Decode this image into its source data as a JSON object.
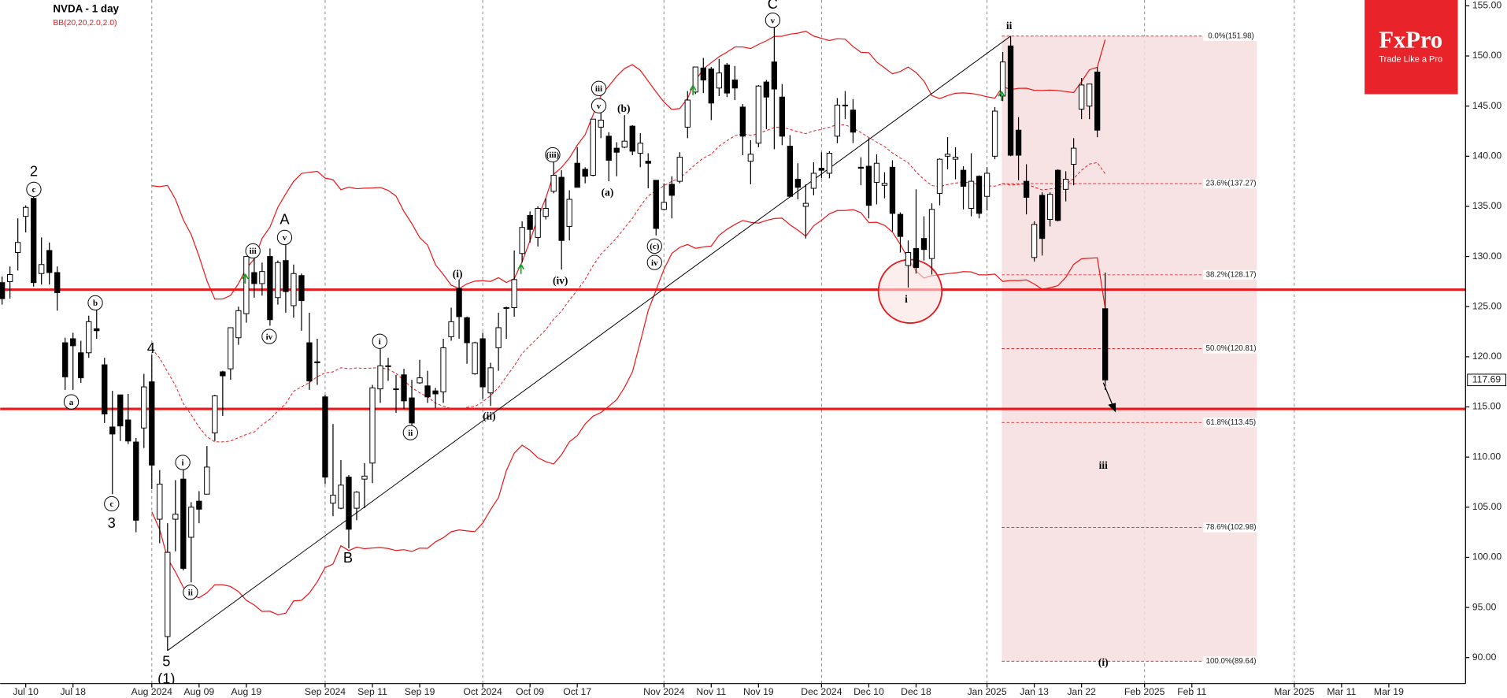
{
  "chart_data": {
    "type": "candlestick",
    "title": "NVDA - 1 day",
    "indicator": {
      "label": "BB(20,20,2.0,2.0)",
      "period": 20,
      "deviations": 2,
      "color": "#e8191c"
    },
    "categories": [
      null,
      null,
      null,
      "Jul 10",
      null,
      null,
      null,
      null,
      null,
      "Jul 18",
      null,
      null,
      null,
      null,
      null,
      null,
      null,
      null,
      null,
      "Aug 2024",
      null,
      null,
      null,
      null,
      null,
      "Aug 09",
      null,
      null,
      null,
      null,
      null,
      "Aug 19",
      null,
      null,
      null,
      null,
      null,
      null,
      null,
      null,
      null,
      "Sep 2024",
      null,
      null,
      null,
      null,
      null,
      "Sep 11",
      null,
      null,
      null,
      null,
      null,
      "Sep 19",
      null,
      null,
      null,
      null,
      null,
      null,
      null,
      "Oct 2024",
      null,
      null,
      null,
      null,
      null,
      "Oct 09",
      null,
      null,
      null,
      null,
      null,
      "Oct 17",
      null,
      null,
      null,
      null,
      null,
      null,
      null,
      null,
      null,
      null,
      "Nov 2024",
      null,
      null,
      null,
      null,
      null,
      "Nov 11",
      null,
      null,
      null,
      null,
      null,
      "Nov 19",
      null,
      null,
      null,
      null,
      null,
      null,
      null,
      "Dec 2024",
      null,
      null,
      null,
      null,
      null,
      "Dec 10",
      null,
      null,
      null,
      null,
      null,
      "Dec 18",
      null,
      null,
      null,
      null,
      null,
      null,
      null,
      null,
      "Jan 2025",
      null,
      null,
      null,
      null,
      null,
      "Jan 13",
      null,
      null,
      null,
      null,
      null,
      "Jan 22",
      null,
      null,
      null,
      null,
      null,
      null,
      null,
      "Feb 2025",
      null,
      null,
      null,
      null,
      null,
      "Feb 11",
      null,
      null,
      null,
      null,
      null,
      null,
      null,
      null,
      null,
      null,
      null,
      null,
      "Mar 2025",
      null,
      null,
      null,
      null,
      null,
      "Mar 11",
      null,
      null,
      null,
      null,
      null,
      "Mar 19",
      null,
      null,
      null,
      null,
      null,
      null,
      null,
      null,
      null
    ],
    "candles": [
      [
        127.4,
        128.0,
        125.2,
        125.8
      ],
      [
        127.5,
        129.0,
        125.8,
        128.2
      ],
      [
        130.4,
        133.8,
        128.6,
        131.4
      ],
      [
        134.0,
        135.1,
        132.4,
        134.9
      ],
      [
        135.8,
        136.2,
        127.0,
        127.4
      ],
      [
        128.3,
        131.9,
        127.2,
        129.2
      ],
      [
        130.6,
        131.4,
        127.2,
        128.4
      ],
      [
        128.4,
        129.0,
        124.6,
        126.4
      ],
      [
        121.4,
        121.9,
        116.7,
        118.0
      ],
      [
        121.8,
        122.4,
        116.7,
        121.1
      ],
      [
        120.4,
        121.6,
        117.4,
        117.9
      ],
      [
        120.4,
        124.1,
        119.9,
        123.5
      ],
      [
        122.8,
        124.7,
        121.8,
        122.6
      ],
      [
        119.2,
        119.9,
        113.4,
        114.3
      ],
      [
        113.0,
        116.6,
        106.3,
        112.3
      ],
      [
        116.2,
        116.2,
        111.6,
        113.1
      ],
      [
        113.7,
        116.3,
        111.3,
        111.6
      ],
      [
        111.5,
        111.9,
        102.5,
        103.7
      ],
      [
        112.9,
        118.3,
        110.9,
        117.0
      ],
      [
        117.5,
        120.2,
        106.8,
        109.2
      ],
      [
        103.8,
        108.7,
        101.4,
        107.3
      ],
      [
        92.1,
        103.4,
        90.7,
        100.5
      ],
      [
        103.8,
        107.7,
        100.6,
        104.3
      ],
      [
        107.8,
        108.8,
        98.7,
        98.9
      ],
      [
        102.0,
        105.5,
        97.5,
        105.0
      ],
      [
        105.6,
        106.6,
        103.4,
        104.8
      ],
      [
        106.3,
        111.1,
        106.3,
        109.0
      ],
      [
        112.4,
        116.2,
        111.6,
        116.1
      ],
      [
        118.5,
        118.6,
        114.1,
        118.1
      ],
      [
        118.8,
        122.9,
        117.7,
        122.9
      ],
      [
        121.9,
        125.0,
        121.2,
        124.6
      ],
      [
        124.3,
        130.0,
        123.4,
        130.0
      ],
      [
        128.4,
        129.9,
        125.9,
        127.3
      ],
      [
        127.3,
        129.4,
        126.1,
        128.5
      ],
      [
        130.0,
        130.8,
        123.1,
        123.7
      ],
      [
        125.9,
        129.6,
        125.2,
        129.4
      ],
      [
        129.6,
        131.3,
        124.4,
        126.5
      ],
      [
        125.1,
        129.2,
        123.9,
        128.3
      ],
      [
        128.1,
        128.3,
        122.6,
        125.6
      ],
      [
        121.4,
        124.4,
        116.7,
        117.6
      ],
      [
        119.5,
        121.8,
        117.2,
        119.4
      ],
      [
        116.0,
        116.2,
        107.3,
        108.0
      ],
      [
        105.4,
        113.3,
        104.1,
        106.2
      ],
      [
        104.9,
        109.7,
        104.8,
        107.2
      ],
      [
        108.0,
        108.2,
        100.9,
        102.8
      ],
      [
        104.9,
        106.6,
        103.7,
        106.5
      ],
      [
        107.8,
        109.4,
        104.9,
        108.1
      ],
      [
        109.4,
        117.2,
        107.4,
        116.9
      ],
      [
        116.8,
        120.8,
        115.4,
        119.1
      ],
      [
        119.1,
        119.9,
        117.6,
        119.1
      ],
      [
        116.8,
        118.2,
        114.4,
        116.8
      ],
      [
        118.2,
        118.8,
        114.8,
        115.6
      ],
      [
        115.9,
        117.7,
        113.2,
        113.4
      ],
      [
        117.4,
        119.7,
        117.3,
        117.9
      ],
      [
        117.1,
        118.6,
        115.4,
        116.0
      ],
      [
        116.6,
        116.9,
        114.9,
        116.3
      ],
      [
        116.5,
        121.8,
        115.4,
        120.9
      ],
      [
        122.0,
        124.9,
        121.6,
        123.5
      ],
      [
        126.8,
        127.7,
        121.8,
        124.0
      ],
      [
        123.9,
        124.0,
        119.3,
        121.4
      ],
      [
        118.3,
        121.5,
        118.2,
        121.4
      ],
      [
        121.8,
        122.4,
        115.8,
        117.0
      ],
      [
        116.4,
        119.4,
        115.1,
        118.9
      ],
      [
        120.9,
        124.4,
        118.6,
        122.9
      ],
      [
        124.9,
        125.0,
        121.8,
        124.9
      ],
      [
        124.9,
        130.6,
        124.0,
        127.7
      ],
      [
        130.3,
        133.5,
        129.4,
        132.9
      ],
      [
        134.1,
        134.5,
        131.4,
        132.7
      ],
      [
        131.9,
        135.0,
        131.0,
        134.8
      ],
      [
        134.0,
        135.8,
        133.7,
        134.8
      ],
      [
        136.5,
        139.6,
        136.3,
        138.1
      ],
      [
        137.9,
        138.6,
        128.7,
        131.6
      ],
      [
        133.0,
        136.6,
        131.6,
        135.7
      ],
      [
        139.3,
        140.9,
        136.9,
        136.9
      ],
      [
        138.7,
        138.9,
        137.3,
        138.0
      ],
      [
        138.1,
        143.7,
        138.0,
        143.7
      ],
      [
        142.9,
        144.4,
        141.8,
        143.6
      ],
      [
        142.0,
        142.4,
        137.5,
        139.6
      ],
      [
        140.8,
        141.4,
        138.0,
        140.4
      ],
      [
        140.9,
        144.1,
        140.8,
        141.5
      ],
      [
        143.0,
        143.1,
        140.1,
        140.5
      ],
      [
        140.3,
        142.3,
        138.9,
        141.3
      ],
      [
        139.5,
        140.3,
        136.8,
        139.3
      ],
      [
        137.6,
        137.6,
        132.1,
        132.8
      ],
      [
        134.7,
        137.3,
        134.6,
        135.4
      ],
      [
        137.2,
        138.0,
        133.8,
        136.1
      ],
      [
        137.5,
        140.4,
        137.3,
        139.9
      ],
      [
        142.9,
        146.5,
        141.8,
        145.6
      ],
      [
        146.4,
        148.9,
        146.2,
        148.9
      ],
      [
        148.8,
        149.8,
        146.3,
        147.6
      ],
      [
        148.7,
        148.9,
        143.6,
        145.3
      ],
      [
        146.8,
        149.7,
        146.0,
        148.3
      ],
      [
        149.1,
        149.3,
        145.9,
        146.3
      ],
      [
        147.6,
        149.0,
        145.6,
        146.8
      ],
      [
        144.9,
        145.2,
        140.1,
        142.0
      ],
      [
        139.5,
        141.6,
        137.2,
        140.2
      ],
      [
        141.3,
        147.1,
        140.9,
        147.0
      ],
      [
        147.4,
        147.6,
        142.7,
        145.9
      ],
      [
        149.4,
        152.9,
        140.7,
        146.7
      ],
      [
        145.9,
        147.2,
        141.1,
        142.0
      ],
      [
        141.0,
        142.1,
        135.9,
        136.0
      ],
      [
        137.7,
        139.3,
        135.7,
        136.9
      ],
      [
        135.0,
        137.2,
        131.8,
        135.3
      ],
      [
        136.8,
        139.4,
        136.1,
        138.3
      ],
      [
        138.8,
        140.4,
        137.8,
        138.6
      ],
      [
        138.3,
        140.5,
        137.8,
        140.3
      ],
      [
        142.0,
        145.8,
        141.3,
        145.1
      ],
      [
        145.1,
        146.5,
        143.7,
        145.1
      ],
      [
        144.6,
        145.7,
        141.3,
        142.4
      ],
      [
        138.9,
        139.9,
        137.1,
        138.8
      ],
      [
        139.0,
        141.8,
        133.8,
        135.1
      ],
      [
        137.4,
        140.2,
        135.2,
        139.3
      ],
      [
        137.1,
        138.4,
        135.8,
        137.3
      ],
      [
        138.9,
        139.6,
        132.5,
        134.3
      ],
      [
        134.2,
        134.4,
        130.4,
        132.0
      ],
      [
        129.1,
        131.6,
        126.9,
        130.4
      ],
      [
        130.8,
        136.7,
        128.3,
        128.9
      ],
      [
        131.8,
        134.0,
        129.6,
        130.7
      ],
      [
        129.8,
        135.3,
        128.2,
        134.7
      ],
      [
        136.3,
        139.8,
        135.1,
        139.7
      ],
      [
        140.0,
        141.9,
        138.7,
        140.2
      ],
      [
        139.7,
        140.9,
        137.7,
        139.9
      ],
      [
        138.6,
        139.0,
        134.7,
        137.0
      ],
      [
        134.8,
        140.3,
        134.0,
        137.5
      ],
      [
        138.0,
        138.1,
        133.8,
        134.3
      ],
      [
        136.0,
        138.9,
        134.6,
        138.3
      ],
      [
        140.0,
        144.9,
        139.7,
        144.5
      ],
      [
        146.0,
        150.4,
        145.5,
        149.4
      ],
      [
        151.0,
        151.98,
        140.0,
        140.1
      ],
      [
        142.6,
        143.9,
        137.6,
        140.1
      ],
      [
        137.5,
        139.2,
        134.2,
        135.9
      ],
      [
        129.9,
        133.5,
        129.5,
        133.2
      ],
      [
        136.1,
        136.4,
        130.1,
        131.8
      ],
      [
        133.7,
        136.4,
        133.0,
        136.2
      ],
      [
        138.6,
        138.7,
        133.5,
        133.6
      ],
      [
        136.7,
        138.5,
        135.5,
        137.7
      ],
      [
        139.2,
        141.8,
        137.1,
        140.8
      ],
      [
        144.7,
        147.8,
        143.7,
        147.1
      ],
      [
        145.0,
        147.2,
        143.7,
        147.2
      ],
      [
        148.4,
        148.9,
        141.9,
        142.6
      ],
      [
        124.8,
        128.4,
        116.7,
        117.69
      ],
      null,
      null,
      null,
      null,
      null,
      null,
      null,
      null,
      null,
      null,
      null,
      null,
      null,
      null,
      null,
      null,
      null,
      null,
      null,
      null,
      null,
      null,
      null,
      null,
      null,
      null,
      null,
      null,
      null,
      null,
      null,
      null,
      null,
      null,
      null,
      null,
      null,
      null,
      null,
      null,
      null,
      null,
      null,
      null,
      null
    ],
    "up_color": "#ffffff",
    "down_color": "#000000",
    "ylim": [
      87.41,
      155.58
    ],
    "yticks": [
      {
        "value": 90,
        "label": "90.00"
      },
      {
        "value": 95,
        "label": "95.00"
      },
      {
        "value": 100,
        "label": "100.00"
      },
      {
        "value": 105,
        "label": "105.00"
      },
      {
        "value": 110,
        "label": "110.00"
      },
      {
        "value": 115,
        "label": "115.00"
      },
      {
        "value": 120,
        "label": "120.00"
      },
      {
        "value": 125,
        "label": "125.00"
      },
      {
        "value": 130,
        "label": "130.00"
      },
      {
        "value": 135,
        "label": "135.00"
      },
      {
        "value": 140,
        "label": "140.00"
      },
      {
        "value": 145,
        "label": "145.00"
      },
      {
        "value": 150,
        "label": "150.00"
      },
      {
        "value": 155,
        "label": "155.00"
      }
    ],
    "levels": [
      126.7,
      114.8
    ],
    "fibonacci": [
      {
        "value": 151.98,
        "label": "0.0%(151.98)"
      },
      {
        "value": 137.27,
        "label": "23.6%(137.27)"
      },
      {
        "value": 128.17,
        "label": "38.2%(128.17)"
      },
      {
        "value": 120.81,
        "label": "50.0%(120.81)"
      },
      {
        "value": 113.45,
        "label": "61.8%(113.45)"
      },
      {
        "value": 102.98,
        "label": "78.6%(102.98)"
      },
      {
        "value": 89.64,
        "label": "100.0%(89.64)"
      }
    ],
    "last_price": {
      "value": 117.69,
      "label": "117.69"
    },
    "annotations": [
      "2",
      "c",
      "b",
      "a",
      "c",
      "3",
      "4",
      "i",
      "ii",
      "5",
      "(1)",
      "iii",
      "iv",
      "v",
      "A",
      "B",
      "i",
      "ii",
      "(i)",
      "(ii)",
      "(iii)",
      "(iv)",
      "(a)",
      "iii",
      "v",
      "(b)",
      "(c)",
      "iv",
      "C",
      "v",
      "ii",
      "i",
      "iii",
      "(i)"
    ]
  },
  "brand": {
    "name": "FxPro",
    "tagline": "Trade Like a Pro"
  }
}
